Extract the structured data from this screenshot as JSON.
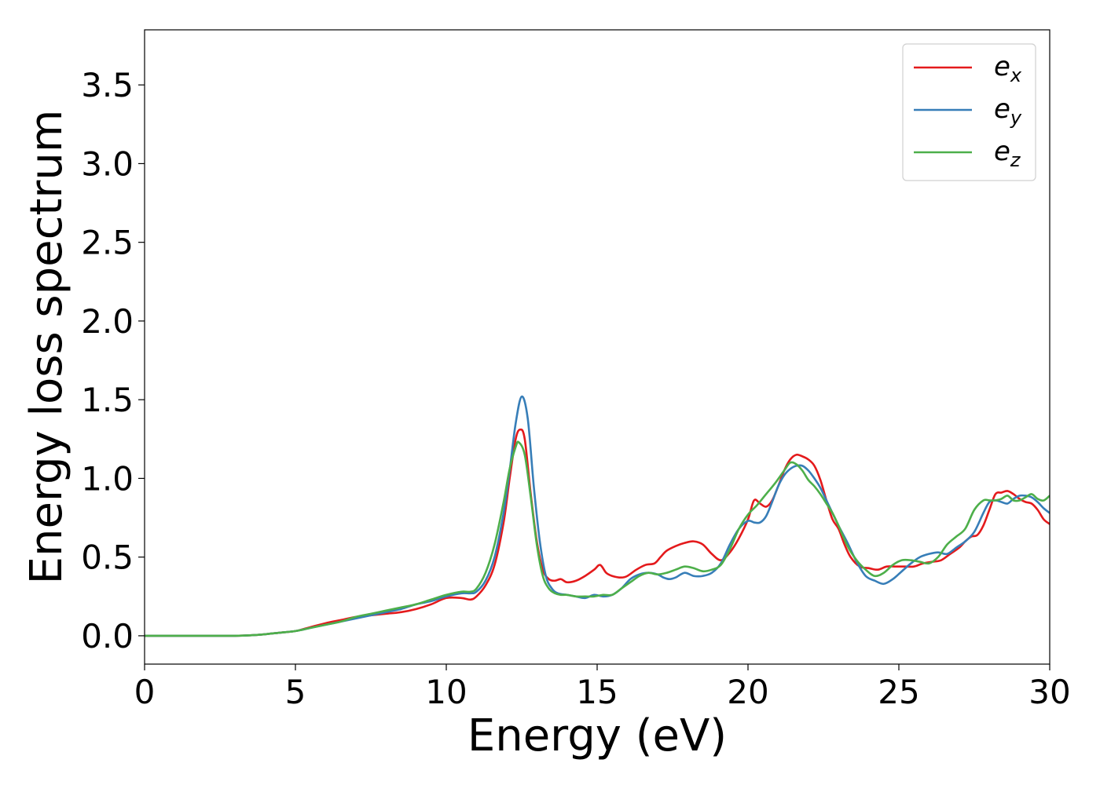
{
  "chart_data": {
    "type": "line",
    "title": "",
    "xlabel": "Energy (eV)",
    "ylabel": "Energy loss spectrum",
    "xlim": [
      0,
      30
    ],
    "ylim": [
      -0.18,
      3.85
    ],
    "xticks": [
      0,
      5,
      10,
      15,
      20,
      25,
      30
    ],
    "xtick_labels": [
      "0",
      "5",
      "10",
      "15",
      "20",
      "25",
      "30"
    ],
    "yticks": [
      0.0,
      0.5,
      1.0,
      1.5,
      2.0,
      2.5,
      3.0,
      3.5
    ],
    "ytick_labels": [
      "0.0",
      "0.5",
      "1.0",
      "1.5",
      "2.0",
      "2.5",
      "3.0",
      "3.5"
    ],
    "grid": false,
    "legend_position": "top-right",
    "series": [
      {
        "name": "e",
        "subscript": "x",
        "color": "#e41a1c",
        "x": [
          0,
          2,
          3,
          3.5,
          4,
          4.5,
          5,
          5.5,
          6,
          6.5,
          7,
          7.5,
          8,
          8.5,
          9,
          9.5,
          10,
          10.5,
          10.8,
          11,
          11.3,
          11.6,
          11.9,
          12.1,
          12.3,
          12.45,
          12.6,
          12.8,
          13,
          13.2,
          13.4,
          13.6,
          13.8,
          14,
          14.3,
          14.6,
          14.9,
          15.1,
          15.3,
          15.5,
          15.8,
          16,
          16.3,
          16.6,
          16.9,
          17.1,
          17.3,
          17.6,
          17.9,
          18.2,
          18.5,
          18.8,
          19.1,
          19.4,
          19.7,
          20,
          20.2,
          20.4,
          20.6,
          20.8,
          21,
          21.2,
          21.4,
          21.6,
          21.8,
          22,
          22.2,
          22.4,
          22.6,
          22.8,
          23,
          23.2,
          23.4,
          23.7,
          24,
          24.3,
          24.6,
          24.9,
          25.2,
          25.5,
          25.8,
          26.1,
          26.4,
          26.7,
          27,
          27.2,
          27.4,
          27.6,
          27.8,
          28,
          28.2,
          28.4,
          28.6,
          28.8,
          29,
          29.2,
          29.4,
          29.6,
          29.8,
          30
        ],
        "values": [
          0,
          0,
          0,
          0.003,
          0.01,
          0.02,
          0.03,
          0.055,
          0.08,
          0.1,
          0.12,
          0.13,
          0.14,
          0.15,
          0.17,
          0.2,
          0.24,
          0.24,
          0.23,
          0.25,
          0.32,
          0.45,
          0.72,
          1.0,
          1.25,
          1.31,
          1.25,
          0.9,
          0.6,
          0.42,
          0.36,
          0.35,
          0.36,
          0.34,
          0.35,
          0.38,
          0.42,
          0.45,
          0.4,
          0.38,
          0.37,
          0.38,
          0.42,
          0.45,
          0.46,
          0.5,
          0.54,
          0.57,
          0.59,
          0.6,
          0.58,
          0.52,
          0.48,
          0.53,
          0.62,
          0.74,
          0.86,
          0.84,
          0.82,
          0.86,
          0.95,
          1.05,
          1.12,
          1.15,
          1.14,
          1.12,
          1.08,
          0.99,
          0.86,
          0.74,
          0.68,
          0.58,
          0.5,
          0.44,
          0.43,
          0.42,
          0.44,
          0.44,
          0.44,
          0.44,
          0.46,
          0.47,
          0.48,
          0.52,
          0.56,
          0.6,
          0.63,
          0.64,
          0.7,
          0.8,
          0.9,
          0.91,
          0.92,
          0.9,
          0.87,
          0.85,
          0.84,
          0.8,
          0.74,
          0.71
        ]
      },
      {
        "name": "e",
        "subscript": "y",
        "color": "#377eb8",
        "x": [
          0,
          2,
          3,
          3.5,
          4,
          4.5,
          5,
          5.5,
          6,
          6.5,
          7,
          7.5,
          8,
          8.5,
          9,
          9.5,
          10,
          10.5,
          10.8,
          11,
          11.3,
          11.6,
          11.9,
          12.1,
          12.3,
          12.5,
          12.7,
          12.9,
          13.1,
          13.3,
          13.5,
          13.7,
          14,
          14.3,
          14.6,
          14.9,
          15.2,
          15.5,
          15.8,
          16.1,
          16.4,
          16.7,
          17,
          17.2,
          17.4,
          17.6,
          17.9,
          18.2,
          18.5,
          18.8,
          19.1,
          19.4,
          19.7,
          20,
          20.2,
          20.4,
          20.6,
          20.8,
          21,
          21.2,
          21.4,
          21.6,
          21.8,
          22,
          22.2,
          22.4,
          22.6,
          22.8,
          23,
          23.3,
          23.6,
          23.9,
          24.2,
          24.5,
          24.8,
          25.1,
          25.4,
          25.7,
          26,
          26.3,
          26.6,
          26.9,
          27.2,
          27.5,
          27.8,
          28,
          28.2,
          28.4,
          28.6,
          28.8,
          29,
          29.2,
          29.4,
          29.6,
          29.8,
          30
        ],
        "values": [
          0,
          0,
          0,
          0.003,
          0.01,
          0.02,
          0.03,
          0.05,
          0.07,
          0.09,
          0.11,
          0.13,
          0.15,
          0.17,
          0.2,
          0.22,
          0.25,
          0.27,
          0.27,
          0.28,
          0.35,
          0.5,
          0.78,
          1.05,
          1.35,
          1.52,
          1.38,
          0.95,
          0.6,
          0.38,
          0.3,
          0.27,
          0.26,
          0.25,
          0.24,
          0.26,
          0.25,
          0.26,
          0.3,
          0.36,
          0.39,
          0.4,
          0.39,
          0.37,
          0.36,
          0.37,
          0.4,
          0.38,
          0.38,
          0.4,
          0.46,
          0.58,
          0.68,
          0.73,
          0.72,
          0.72,
          0.76,
          0.85,
          0.95,
          1.02,
          1.06,
          1.08,
          1.08,
          1.05,
          1.0,
          0.94,
          0.86,
          0.78,
          0.7,
          0.59,
          0.47,
          0.38,
          0.35,
          0.33,
          0.36,
          0.41,
          0.46,
          0.5,
          0.52,
          0.53,
          0.52,
          0.56,
          0.6,
          0.66,
          0.78,
          0.85,
          0.86,
          0.85,
          0.84,
          0.87,
          0.89,
          0.89,
          0.88,
          0.85,
          0.81,
          0.78
        ]
      },
      {
        "name": "e",
        "subscript": "z",
        "color": "#4daf4a",
        "x": [
          0,
          2,
          3,
          3.5,
          4,
          4.5,
          5,
          5.5,
          6,
          6.5,
          7,
          7.5,
          8,
          8.5,
          9,
          9.5,
          10,
          10.5,
          10.8,
          11,
          11.3,
          11.6,
          11.9,
          12.1,
          12.3,
          12.4,
          12.6,
          12.8,
          13,
          13.2,
          13.4,
          13.6,
          13.8,
          14,
          14.3,
          14.6,
          14.9,
          15.2,
          15.5,
          15.8,
          16.1,
          16.4,
          16.7,
          17,
          17.3,
          17.6,
          17.9,
          18.2,
          18.5,
          18.8,
          19.1,
          19.4,
          19.7,
          20,
          20.3,
          20.6,
          20.9,
          21.2,
          21.4,
          21.6,
          21.8,
          22,
          22.2,
          22.4,
          22.6,
          22.8,
          23,
          23.3,
          23.6,
          23.9,
          24.2,
          24.5,
          24.8,
          25.1,
          25.4,
          25.7,
          26,
          26.3,
          26.6,
          26.9,
          27.2,
          27.5,
          27.8,
          28,
          28.2,
          28.4,
          28.6,
          28.8,
          29,
          29.2,
          29.4,
          29.6,
          29.8,
          30
        ],
        "values": [
          0,
          0,
          0,
          0.003,
          0.01,
          0.02,
          0.03,
          0.05,
          0.07,
          0.09,
          0.12,
          0.14,
          0.16,
          0.18,
          0.2,
          0.23,
          0.26,
          0.28,
          0.28,
          0.3,
          0.4,
          0.58,
          0.85,
          1.06,
          1.2,
          1.23,
          1.15,
          0.88,
          0.58,
          0.38,
          0.3,
          0.27,
          0.26,
          0.26,
          0.25,
          0.25,
          0.25,
          0.26,
          0.26,
          0.3,
          0.34,
          0.38,
          0.4,
          0.39,
          0.4,
          0.42,
          0.44,
          0.43,
          0.41,
          0.42,
          0.45,
          0.55,
          0.68,
          0.77,
          0.83,
          0.9,
          0.97,
          1.05,
          1.1,
          1.09,
          1.05,
          0.99,
          0.95,
          0.9,
          0.84,
          0.78,
          0.7,
          0.57,
          0.48,
          0.42,
          0.38,
          0.4,
          0.45,
          0.48,
          0.48,
          0.47,
          0.46,
          0.5,
          0.58,
          0.63,
          0.68,
          0.8,
          0.86,
          0.86,
          0.86,
          0.87,
          0.89,
          0.86,
          0.86,
          0.88,
          0.9,
          0.87,
          0.86,
          0.89
        ]
      }
    ]
  }
}
